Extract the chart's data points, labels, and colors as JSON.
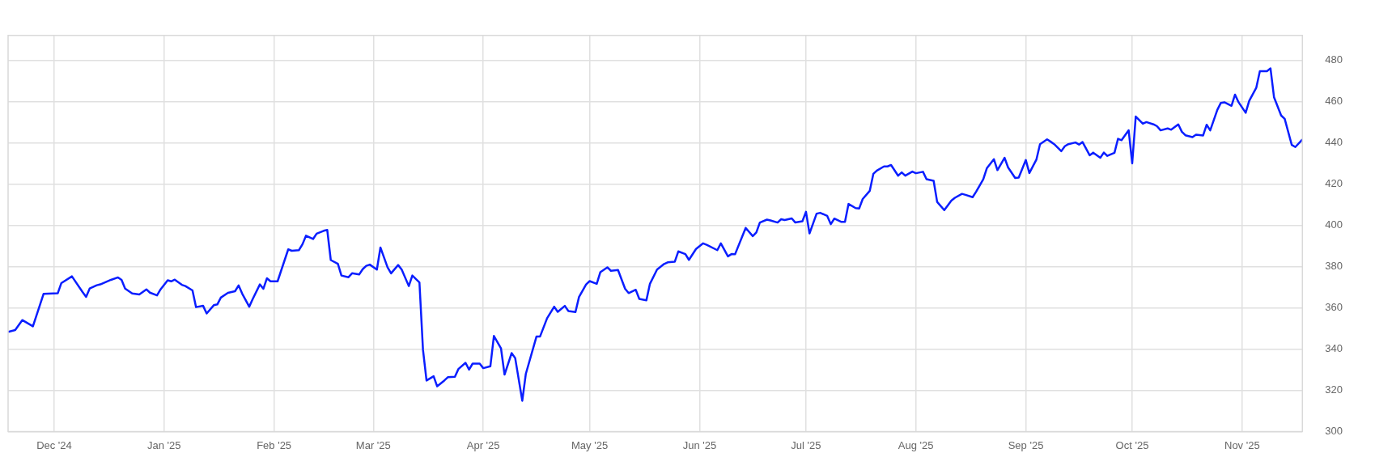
{
  "chart_data": {
    "type": "line",
    "xlim": [
      "2024-11-18",
      "2025-11-18"
    ],
    "ylim": [
      300,
      492
    ],
    "yticks": [
      300,
      320,
      340,
      360,
      380,
      400,
      420,
      440,
      460,
      480
    ],
    "xticks": [
      {
        "value": "2024-12-01",
        "label": "Dec '24"
      },
      {
        "value": "2025-01-01",
        "label": "Jan '25"
      },
      {
        "value": "2025-02-01",
        "label": "Feb '25"
      },
      {
        "value": "2025-03-01",
        "label": "Mar '25"
      },
      {
        "value": "2025-04-01",
        "label": "Apr '25"
      },
      {
        "value": "2025-05-01",
        "label": "May '25"
      },
      {
        "value": "2025-06-01",
        "label": "Jun '25"
      },
      {
        "value": "2025-07-01",
        "label": "Jul '25"
      },
      {
        "value": "2025-08-01",
        "label": "Aug '25"
      },
      {
        "value": "2025-09-01",
        "label": "Sep '25"
      },
      {
        "value": "2025-10-01",
        "label": "Oct '25"
      },
      {
        "value": "2025-11-01",
        "label": "Nov '25"
      }
    ],
    "grid": true,
    "marker": "none",
    "line_style": "solid",
    "x": [
      "2024-11-18",
      "2024-11-20",
      "2024-11-22",
      "2024-11-25",
      "2024-11-28",
      "2024-12-02",
      "2024-12-03",
      "2024-12-06",
      "2024-12-09",
      "2024-12-10",
      "2024-12-11",
      "2024-12-13",
      "2024-12-14",
      "2024-12-17",
      "2024-12-19",
      "2024-12-20",
      "2024-12-21",
      "2024-12-23",
      "2024-12-25",
      "2024-12-27",
      "2024-12-28",
      "2024-12-30",
      "2024-12-31",
      "2025-01-02",
      "2025-01-03",
      "2025-01-04",
      "2025-01-06",
      "2025-01-07",
      "2025-01-09",
      "2025-01-10",
      "2025-01-12",
      "2025-01-13",
      "2025-01-15",
      "2025-01-16",
      "2025-01-17",
      "2025-01-19",
      "2025-01-21",
      "2025-01-22",
      "2025-01-23",
      "2025-01-25",
      "2025-01-26",
      "2025-01-28",
      "2025-01-29",
      "2025-01-30",
      "2025-01-31",
      "2025-02-02",
      "2025-02-03",
      "2025-02-05",
      "2025-02-06",
      "2025-02-08",
      "2025-02-09",
      "2025-02-10",
      "2025-02-12",
      "2025-02-13",
      "2025-02-15",
      "2025-02-16",
      "2025-02-17",
      "2025-02-19",
      "2025-02-20",
      "2025-02-22",
      "2025-02-23",
      "2025-02-25",
      "2025-02-26",
      "2025-02-27",
      "2025-02-28",
      "2025-03-02",
      "2025-03-03",
      "2025-03-05",
      "2025-03-06",
      "2025-03-08",
      "2025-03-09",
      "2025-03-11",
      "2025-03-12",
      "2025-03-14",
      "2025-03-15",
      "2025-03-16",
      "2025-03-18",
      "2025-03-19",
      "2025-03-21",
      "2025-03-22",
      "2025-03-24",
      "2025-03-25",
      "2025-03-27",
      "2025-03-28",
      "2025-03-29",
      "2025-03-31",
      "2025-04-01",
      "2025-04-03",
      "2025-04-04",
      "2025-04-06",
      "2025-04-07",
      "2025-04-09",
      "2025-04-10",
      "2025-04-12",
      "2025-04-13",
      "2025-04-16",
      "2025-04-17",
      "2025-04-19",
      "2025-04-21",
      "2025-04-22",
      "2025-04-24",
      "2025-04-25",
      "2025-04-27",
      "2025-04-28",
      "2025-04-30",
      "2025-05-01",
      "2025-05-03",
      "2025-05-04",
      "2025-05-06",
      "2025-05-07",
      "2025-05-09",
      "2025-05-11",
      "2025-05-12",
      "2025-05-14",
      "2025-05-15",
      "2025-05-17",
      "2025-05-18",
      "2025-05-20",
      "2025-05-22",
      "2025-05-23",
      "2025-05-25",
      "2025-05-26",
      "2025-05-28",
      "2025-05-29",
      "2025-05-31",
      "2025-06-02",
      "2025-06-03",
      "2025-06-06",
      "2025-06-07",
      "2025-06-09",
      "2025-06-10",
      "2025-06-11",
      "2025-06-14",
      "2025-06-16",
      "2025-06-17",
      "2025-06-18",
      "2025-06-20",
      "2025-06-21",
      "2025-06-23",
      "2025-06-24",
      "2025-06-25",
      "2025-06-27",
      "2025-06-28",
      "2025-06-30",
      "2025-07-01",
      "2025-07-02",
      "2025-07-04",
      "2025-07-05",
      "2025-07-07",
      "2025-07-08",
      "2025-07-09",
      "2025-07-11",
      "2025-07-12",
      "2025-07-13",
      "2025-07-15",
      "2025-07-16",
      "2025-07-17",
      "2025-07-19",
      "2025-07-20",
      "2025-07-21",
      "2025-07-23",
      "2025-07-24",
      "2025-07-25",
      "2025-07-27",
      "2025-07-28",
      "2025-07-29",
      "2025-07-31",
      "2025-08-01",
      "2025-08-03",
      "2025-08-04",
      "2025-08-06",
      "2025-08-07",
      "2025-08-09",
      "2025-08-11",
      "2025-08-12",
      "2025-08-14",
      "2025-08-15",
      "2025-08-17",
      "2025-08-18",
      "2025-08-20",
      "2025-08-21",
      "2025-08-23",
      "2025-08-24",
      "2025-08-26",
      "2025-08-27",
      "2025-08-29",
      "2025-08-30",
      "2025-09-01",
      "2025-09-02",
      "2025-09-04",
      "2025-09-05",
      "2025-09-07",
      "2025-09-08",
      "2025-09-09",
      "2025-09-11",
      "2025-09-12",
      "2025-09-13",
      "2025-09-15",
      "2025-09-16",
      "2025-09-17",
      "2025-09-19",
      "2025-09-20",
      "2025-09-22",
      "2025-09-23",
      "2025-09-24",
      "2025-09-26",
      "2025-09-27",
      "2025-09-28",
      "2025-09-30",
      "2025-10-01",
      "2025-10-02",
      "2025-10-04",
      "2025-10-05",
      "2025-10-07",
      "2025-10-08",
      "2025-10-09",
      "2025-10-11",
      "2025-10-12",
      "2025-10-14",
      "2025-10-15",
      "2025-10-16",
      "2025-10-18",
      "2025-10-19",
      "2025-10-21",
      "2025-10-22",
      "2025-10-23",
      "2025-10-25",
      "2025-10-26",
      "2025-10-27",
      "2025-10-29",
      "2025-10-30",
      "2025-10-31",
      "2025-11-02",
      "2025-11-03",
      "2025-11-05",
      "2025-11-06",
      "2025-11-08",
      "2025-11-09",
      "2025-11-10",
      "2025-11-12",
      "2025-11-13",
      "2025-11-15",
      "2025-11-16",
      "2025-11-18"
    ],
    "series": [
      {
        "color": "#0a1eff",
        "values": [
          348.3,
          349.2,
          354,
          351,
          366.7,
          367,
          371.9,
          375.2,
          367.6,
          365.3,
          369.3,
          370.9,
          371.3,
          373.5,
          374.7,
          373.5,
          369.3,
          366.9,
          366.4,
          368.9,
          367.3,
          366,
          368.9,
          373.3,
          372.8,
          373.6,
          371.1,
          370.5,
          368.4,
          360.3,
          360.9,
          357.2,
          361.2,
          361.6,
          364.9,
          367.2,
          368,
          370.8,
          366.9,
          360.5,
          364.3,
          371.3,
          369.2,
          374.3,
          372.8,
          372.8,
          378,
          388.3,
          387.6,
          387.9,
          390.7,
          394.9,
          393.3,
          395.9,
          397.3,
          397.7,
          383.1,
          381.3,
          375.6,
          374.8,
          376.7,
          376.1,
          378.7,
          380.3,
          380.9,
          378.5,
          389.2,
          379.6,
          376.7,
          380.7,
          378.5,
          370.5,
          375.6,
          372.3,
          339.6,
          324.7,
          326.8,
          321.9,
          324.7,
          326.3,
          326.5,
          330.3,
          333.3,
          330,
          332.9,
          332.9,
          330.7,
          331.6,
          346.3,
          340.3,
          327.6,
          338,
          335.6,
          314.9,
          327.9,
          346,
          346,
          354.9,
          360.5,
          358,
          360.9,
          358.4,
          357.9,
          365.2,
          371.3,
          372.9,
          371.6,
          377.2,
          379.6,
          377.9,
          378.3,
          369.2,
          367.1,
          368.7,
          364.3,
          363.6,
          371.6,
          378.5,
          381.2,
          382,
          382.3,
          387.3,
          386,
          383.2,
          388.5,
          391.2,
          390.5,
          387.9,
          391.2,
          384.9,
          386,
          385.9,
          398.7,
          394.7,
          396.5,
          401.3,
          402.7,
          402.3,
          401.3,
          402.9,
          402.5,
          403.3,
          401.3,
          401.9,
          406.5,
          396,
          405.6,
          406,
          404.5,
          400.5,
          403.2,
          401.6,
          401.6,
          410.3,
          408.3,
          408.1,
          412.7,
          416.7,
          424.9,
          426.5,
          428.5,
          428.5,
          429.2,
          424,
          425.6,
          424,
          426,
          425.2,
          425.9,
          422.3,
          421.5,
          411.3,
          407.3,
          411.9,
          413.3,
          415.2,
          414.7,
          413.6,
          416.3,
          422.3,
          427.6,
          432,
          426.7,
          432.7,
          428,
          422.9,
          423.1,
          431.6,
          425.3,
          431.9,
          439.3,
          441.6,
          440.5,
          439.3,
          435.9,
          438.3,
          439.3,
          440.1,
          439.1,
          440.3,
          433.9,
          435.2,
          432.7,
          435.2,
          433.6,
          435.1,
          441.9,
          441.2,
          446,
          430,
          452.7,
          449.2,
          450,
          448.9,
          448,
          446,
          446.9,
          446.3,
          448.9,
          445.3,
          443.6,
          442.7,
          443.9,
          443.5,
          448.7,
          446,
          455.9,
          459.3,
          459.6,
          457.9,
          463.3,
          459.6,
          454.5,
          460.3,
          466.7,
          474.7,
          474.7,
          476,
          462,
          453.2,
          451.6,
          438.9,
          437.9,
          441.6
        ]
      }
    ]
  }
}
